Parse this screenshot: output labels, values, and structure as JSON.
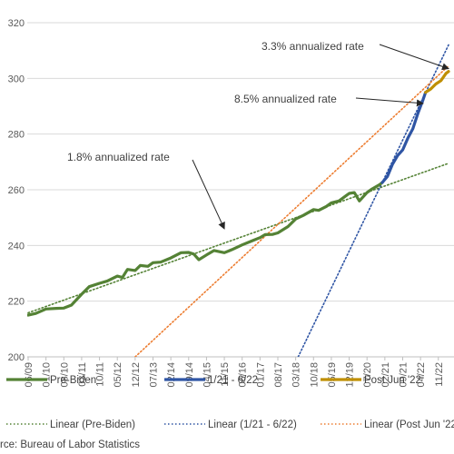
{
  "chart_data": {
    "type": "line",
    "title": "",
    "xlabel": "",
    "ylabel": "",
    "ylim": [
      200,
      320
    ],
    "yticks": [
      200,
      220,
      240,
      260,
      280,
      300,
      320
    ],
    "xtick_labels": [
      "06/09",
      "01/10",
      "08/10",
      "03/11",
      "10/11",
      "05/12",
      "12/12",
      "07/13",
      "02/14",
      "09/14",
      "04/15",
      "11/15",
      "06/16",
      "01/17",
      "08/17",
      "03/18",
      "10/18",
      "05/19",
      "12/19",
      "07/20",
      "02/21",
      "09/21",
      "04/22",
      "11/22"
    ],
    "grid": "horizontal",
    "series": [
      {
        "name": "Pre-Biden",
        "color": "#548235",
        "style": "solid",
        "points": [
          [
            "06/09",
            215.0
          ],
          [
            "09/09",
            215.6
          ],
          [
            "01/10",
            217.2
          ],
          [
            "05/10",
            217.4
          ],
          [
            "08/10",
            217.5
          ],
          [
            "11/10",
            218.6
          ],
          [
            "03/11",
            222.5
          ],
          [
            "06/11",
            225.2
          ],
          [
            "10/11",
            226.4
          ],
          [
            "01/12",
            227.2
          ],
          [
            "05/12",
            229.0
          ],
          [
            "07/12",
            228.5
          ],
          [
            "09/12",
            231.4
          ],
          [
            "12/12",
            231.0
          ],
          [
            "02/13",
            232.8
          ],
          [
            "05/13",
            232.5
          ],
          [
            "07/13",
            233.8
          ],
          [
            "10/13",
            234.0
          ],
          [
            "02/14",
            235.5
          ],
          [
            "06/14",
            237.4
          ],
          [
            "09/14",
            237.5
          ],
          [
            "11/14",
            236.9
          ],
          [
            "01/15",
            234.9
          ],
          [
            "04/15",
            236.6
          ],
          [
            "07/15",
            238.2
          ],
          [
            "11/15",
            237.4
          ],
          [
            "02/16",
            238.5
          ],
          [
            "06/16",
            240.2
          ],
          [
            "10/16",
            241.7
          ],
          [
            "01/17",
            242.8
          ],
          [
            "03/17",
            243.9
          ],
          [
            "06/17",
            244.0
          ],
          [
            "08/17",
            244.5
          ],
          [
            "12/17",
            246.8
          ],
          [
            "03/18",
            249.5
          ],
          [
            "06/18",
            250.8
          ],
          [
            "10/18",
            252.9
          ],
          [
            "12/18",
            252.6
          ],
          [
            "03/19",
            254.0
          ],
          [
            "05/19",
            255.3
          ],
          [
            "08/19",
            256.0
          ],
          [
            "12/19",
            258.7
          ],
          [
            "02/20",
            259.0
          ],
          [
            "04/20",
            256.0
          ],
          [
            "07/20",
            259.0
          ],
          [
            "09/20",
            260.3
          ],
          [
            "12/20",
            261.9
          ],
          [
            "01/21",
            262.6
          ]
        ]
      },
      {
        "name": "1/21 - 6/22",
        "color": "#2F55A4",
        "style": "solid",
        "points": [
          [
            "01/21",
            262.6
          ],
          [
            "03/21",
            264.8
          ],
          [
            "05/21",
            269.2
          ],
          [
            "07/21",
            272.3
          ],
          [
            "09/21",
            274.3
          ],
          [
            "11/21",
            278.5
          ],
          [
            "01/22",
            281.9
          ],
          [
            "03/22",
            287.5
          ],
          [
            "05/22",
            292.3
          ],
          [
            "06/22",
            295.0
          ]
        ]
      },
      {
        "name": "Post Jun '22",
        "color": "#BF8F00",
        "style": "solid",
        "points": [
          [
            "06/22",
            295.0
          ],
          [
            "08/22",
            296.2
          ],
          [
            "10/22",
            298.0
          ],
          [
            "12/22",
            299.2
          ],
          [
            "02/23",
            301.8
          ],
          [
            "03/23",
            302.5
          ]
        ]
      },
      {
        "name": "Linear (Pre-Biden)",
        "color": "#548235",
        "style": "dotted",
        "points": [
          [
            "06/09",
            215.8
          ],
          [
            "03/23",
            269.5
          ]
        ]
      },
      {
        "name": "Linear (1/21 - 6/22)",
        "color": "#2F55A4",
        "style": "dotted",
        "points": [
          [
            "04/18",
            200.0
          ],
          [
            "03/23",
            312.0
          ]
        ]
      },
      {
        "name": "Linear (Post Jun '22)",
        "color": "#ED7D31",
        "style": "dotted",
        "points": [
          [
            "12/12",
            200.0
          ],
          [
            "03/23",
            304.5
          ]
        ]
      }
    ],
    "annotations": [
      {
        "text": "3.3% annualized rate",
        "arrow_to": [
          "03/23",
          303.5
        ]
      },
      {
        "text": "8.5% annualized rate",
        "arrow_to": [
          "05/22",
          291.0
        ]
      },
      {
        "text": "1.8% annualized rate",
        "arrow_to": [
          "11/15",
          246.0
        ]
      }
    ],
    "legend": {
      "position": "bottom",
      "entries": [
        "Pre-Biden",
        "1/21 - 6/22",
        "Post Jun '22",
        "Linear (Pre-Biden)",
        "Linear (1/21 - 6/22)",
        "Linear (Post Jun '22)"
      ]
    },
    "source": "rce: Bureau of Labor Statistics"
  }
}
